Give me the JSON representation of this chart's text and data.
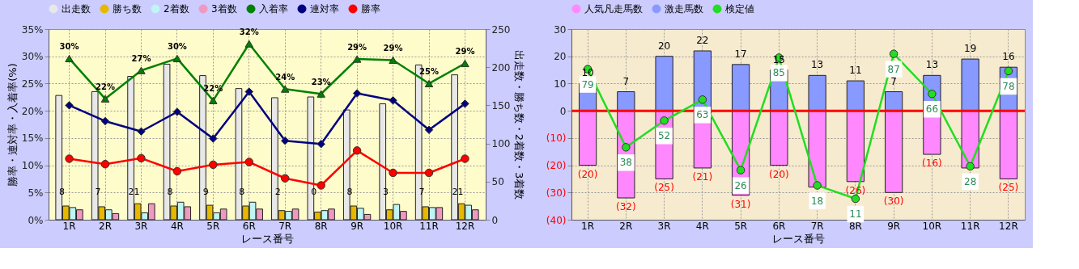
{
  "chart_data": [
    {
      "type": "bar",
      "categories": [
        "1R",
        "2R",
        "3R",
        "4R",
        "5R",
        "6R",
        "7R",
        "8R",
        "9R",
        "10R",
        "11R",
        "12R"
      ],
      "xlabel": "レース番号",
      "ylabel": "勝率・連対率・入着率(%)",
      "y2label": "出走数・勝ち数・2着数・3着数",
      "ylim": [
        0,
        35
      ],
      "yticks": [
        {
          "value": 0,
          "label": "0%"
        },
        {
          "value": 5,
          "label": "5%"
        },
        {
          "value": 10,
          "label": "10%"
        },
        {
          "value": 15,
          "label": "15%"
        },
        {
          "value": 20,
          "label": "20%"
        },
        {
          "value": 25,
          "label": "25%"
        },
        {
          "value": 30,
          "label": "30%"
        },
        {
          "value": 35,
          "label": "35%"
        }
      ],
      "y2lim": [
        0,
        250
      ],
      "y2ticks": [
        0,
        50,
        100,
        150,
        200,
        250
      ],
      "grid": true,
      "legend": "top",
      "annotations": [
        "8",
        "7",
        "21",
        "8",
        "9",
        "8",
        "2",
        "0",
        "8",
        "3",
        "7",
        "21"
      ],
      "series": [
        {
          "name": "出走数",
          "type": "bar",
          "axis": "y2",
          "color": "#e8e8e8",
          "values": [
            163,
            168,
            188,
            204,
            189,
            172,
            160,
            161,
            144,
            152,
            203,
            190
          ]
        },
        {
          "name": "勝ち数",
          "type": "bar",
          "axis": "y2",
          "color": "#e6b800",
          "values": [
            18,
            17,
            21,
            18,
            19,
            18,
            12,
            10,
            18,
            13,
            17,
            21
          ]
        },
        {
          "name": "2着数",
          "type": "bar",
          "axis": "y2",
          "color": "#bff5f5",
          "values": [
            16,
            13,
            9,
            23,
            9,
            23,
            11,
            12,
            15,
            20,
            16,
            19
          ]
        },
        {
          "name": "3着数",
          "type": "bar",
          "axis": "y2",
          "color": "#f099c0",
          "values": [
            13,
            8,
            21,
            17,
            14,
            14,
            14,
            14,
            7,
            11,
            16,
            13
          ]
        },
        {
          "name": "入着率",
          "type": "line",
          "axis": "y",
          "marker": "triangle",
          "line_style": "solid",
          "color": "#008000",
          "values": [
            29.6,
            22.2,
            27.4,
            29.6,
            21.9,
            32.3,
            24.0,
            23.1,
            29.5,
            29.3,
            25.0,
            28.7
          ],
          "value_labels": [
            "30%",
            "22%",
            "27%",
            "30%",
            "22%",
            "32%",
            "24%",
            "23%",
            "29%",
            "29%",
            "25%",
            "29%"
          ]
        },
        {
          "name": "連対率",
          "type": "line",
          "axis": "y",
          "marker": "diamond",
          "line_style": "solid",
          "color": "#000080",
          "values": [
            21.0,
            18.1,
            16.2,
            19.8,
            14.9,
            23.5,
            14.5,
            13.9,
            23.2,
            21.9,
            16.5,
            21.3
          ]
        },
        {
          "name": "勝率",
          "type": "line",
          "axis": "y",
          "marker": "circle",
          "line_style": "solid",
          "color": "#ff0000",
          "values": [
            11.2,
            10.2,
            11.3,
            8.9,
            10.1,
            10.6,
            7.6,
            6.3,
            12.7,
            8.6,
            8.6,
            11.2
          ]
        }
      ]
    },
    {
      "type": "bar",
      "categories": [
        "1R",
        "2R",
        "3R",
        "4R",
        "5R",
        "6R",
        "7R",
        "8R",
        "9R",
        "10R",
        "11R",
        "12R"
      ],
      "xlabel": "レース番号",
      "stacked": true,
      "ylim": [
        -40,
        30
      ],
      "yticks": [
        {
          "value": -40,
          "label": "(40)"
        },
        {
          "value": -30,
          "label": "(30)"
        },
        {
          "value": -20,
          "label": "(20)"
        },
        {
          "value": -10,
          "label": "(10)"
        },
        0,
        10,
        20,
        30
      ],
      "y2lim": [
        0,
        100
      ],
      "grid": true,
      "legend": "top",
      "ref_lines": [
        {
          "axis": "y",
          "value": 0,
          "color": "#ff0000"
        }
      ],
      "series": [
        {
          "name": "人気凡走馬数",
          "type": "bar",
          "color": "#ff88ff",
          "values": [
            -20,
            -32,
            -25,
            -21,
            -31,
            -20,
            -28,
            -26,
            -30,
            -16,
            -21,
            -25
          ],
          "value_labels": [
            "(20)",
            "(32)",
            "(25)",
            "(21)",
            "(31)",
            "(20)",
            null,
            "(26)",
            "(30)",
            "(16)",
            null,
            "(25)"
          ]
        },
        {
          "name": "激走馬数",
          "type": "bar",
          "color": "#8899ff",
          "values": [
            10,
            7,
            20,
            22,
            17,
            15,
            13,
            11,
            7,
            13,
            19,
            16
          ],
          "value_labels": [
            "10",
            "7",
            "20",
            "22",
            "17",
            "15",
            "13",
            "11",
            "7",
            "13",
            "19",
            "16"
          ]
        },
        {
          "name": "検定値",
          "type": "line",
          "axis": "y2",
          "marker": "circle",
          "line_style": "solid",
          "color": "#22dd22",
          "values": [
            79,
            38,
            52,
            63,
            26,
            85,
            18,
            11,
            87,
            66,
            28,
            78
          ],
          "data_labels": true
        }
      ]
    }
  ]
}
